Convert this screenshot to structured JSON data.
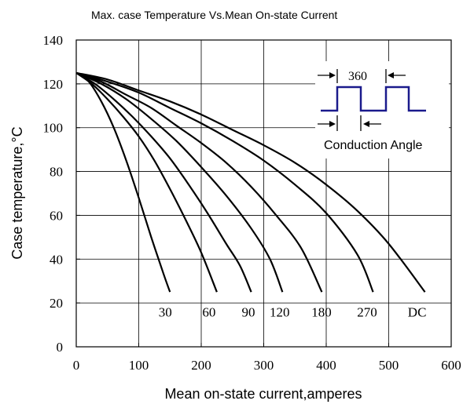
{
  "chart_data": {
    "type": "line",
    "title": "Max. case Temperature Vs.Mean On-state Current",
    "xlabel": "Mean on-state current,amperes",
    "ylabel": "Case temperature,°C",
    "xlim": [
      0,
      600
    ],
    "ylim": [
      0,
      140
    ],
    "xticks": [
      0,
      100,
      200,
      300,
      400,
      500,
      600
    ],
    "yticks": [
      0,
      20,
      40,
      60,
      80,
      100,
      120,
      140
    ],
    "grid": true,
    "series": [
      {
        "name": "30",
        "x": [
          0,
          20,
          40,
          60,
          80,
          100,
          120,
          140,
          150
        ],
        "y": [
          125,
          121,
          112,
          100,
          85,
          68,
          50,
          33,
          25
        ]
      },
      {
        "name": "60",
        "x": [
          0,
          25,
          50,
          75,
          100,
          125,
          150,
          175,
          200,
          225
        ],
        "y": [
          125,
          120,
          113,
          105,
          96,
          85,
          72,
          58,
          43,
          25
        ]
      },
      {
        "name": "90",
        "x": [
          0,
          30,
          60,
          90,
          120,
          150,
          180,
          210,
          240,
          262,
          280
        ],
        "y": [
          125,
          120,
          113,
          105,
          96,
          86,
          74,
          61,
          47,
          37,
          25
        ]
      },
      {
        "name": "120",
        "x": [
          0,
          40,
          80,
          120,
          160,
          200,
          240,
          280,
          310,
          330
        ],
        "y": [
          125,
          120,
          113,
          104,
          94,
          82,
          69,
          54,
          40,
          25
        ]
      },
      {
        "name": "180",
        "x": [
          0,
          40,
          80,
          120,
          160,
          200,
          240,
          280,
          320,
          360,
          393
        ],
        "y": [
          125,
          121,
          115,
          109,
          101,
          93,
          84,
          73,
          60,
          45,
          25
        ]
      },
      {
        "name": "270",
        "x": [
          0,
          50,
          100,
          150,
          200,
          250,
          300,
          350,
          400,
          450,
          475
        ],
        "y": [
          125,
          121,
          116,
          109,
          102,
          94,
          85,
          74,
          61,
          42,
          25
        ]
      },
      {
        "name": "DC",
        "x": [
          0,
          50,
          100,
          150,
          200,
          250,
          300,
          350,
          400,
          450,
          500,
          558
        ],
        "y": [
          125,
          122,
          117,
          112,
          106,
          99,
          92,
          84,
          74,
          62,
          47,
          25
        ]
      }
    ],
    "curve_labels": [
      "30",
      "60",
      "90",
      "120",
      "180",
      "270",
      "DC"
    ],
    "curve_label_x": [
      155,
      225,
      288,
      338,
      405,
      478,
      558
    ],
    "curve_label_y": 16,
    "inset": {
      "period_label": "360",
      "angle_label": "Conduction Angle",
      "waveform_color": "#1a1a8c"
    }
  }
}
